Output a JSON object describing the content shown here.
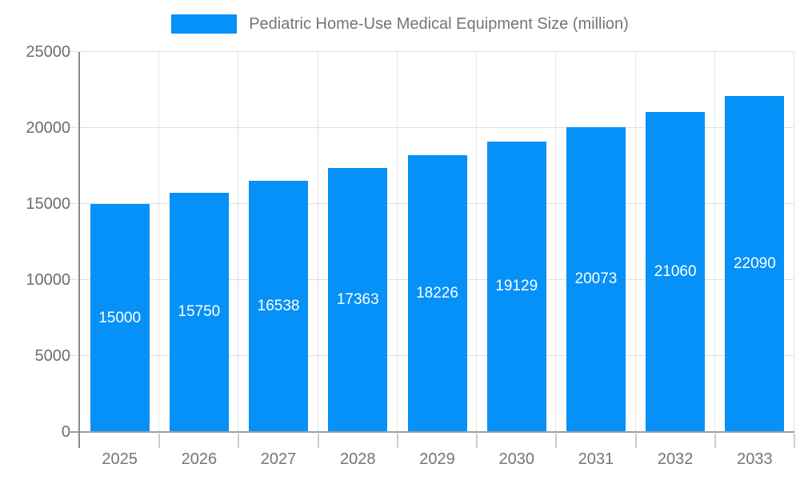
{
  "chart_data": {
    "type": "bar",
    "title": "Pediatric Home-Use Medical Equipment Size (million)",
    "categories": [
      "2025",
      "2026",
      "2027",
      "2028",
      "2029",
      "2030",
      "2031",
      "2032",
      "2033"
    ],
    "values": [
      15000,
      15750,
      16538,
      17363,
      18226,
      19129,
      20073,
      21060,
      22090
    ],
    "value_labels": [
      "15000",
      "15750",
      "16538",
      "17363",
      "18226",
      "19129",
      "20073",
      "21060",
      "22090"
    ],
    "yticks": [
      0,
      5000,
      10000,
      15000,
      20000,
      25000
    ],
    "ytick_labels": [
      "0",
      "5000",
      "10000",
      "15000",
      "20000",
      "25000"
    ],
    "ylim": [
      0,
      25000
    ],
    "xlabel": "",
    "ylabel": "",
    "grid": true,
    "legend_position": "top",
    "bar_color": "#0591f8",
    "value_label_color": "#ffffff",
    "axis_text_color": "#6e6e6e",
    "legend_text_color": "#757575",
    "gridline_color": "#e0e0e0",
    "axis_line_color": "#8a8a8a"
  }
}
